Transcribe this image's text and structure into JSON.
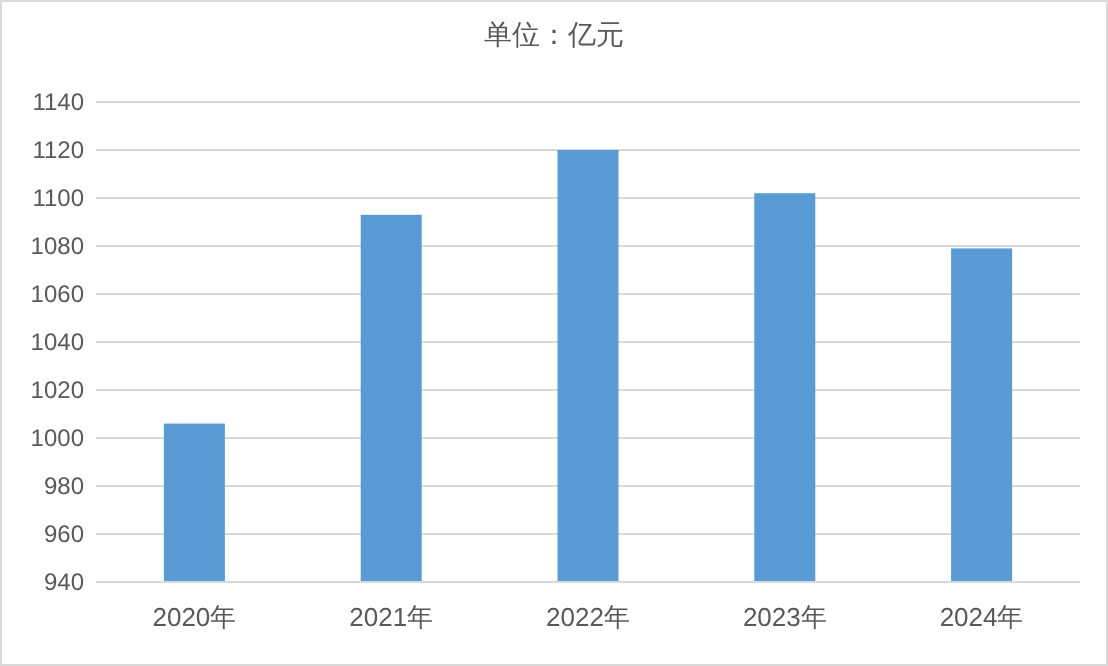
{
  "chart_data": {
    "type": "bar",
    "title": "单位：亿元",
    "categories": [
      "2020年",
      "2021年",
      "2022年",
      "2023年",
      "2024年"
    ],
    "values": [
      1006,
      1093,
      1120,
      1102,
      1079
    ],
    "color": "#5b9bd5",
    "ylim": [
      940,
      1140
    ],
    "yticks": [
      940,
      960,
      980,
      1000,
      1020,
      1040,
      1060,
      1080,
      1100,
      1120,
      1140
    ],
    "grid": "y"
  }
}
